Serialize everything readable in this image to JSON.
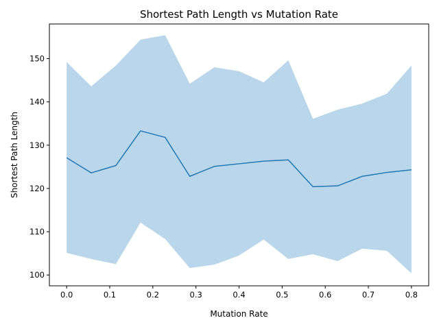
{
  "chart_data": {
    "type": "line",
    "title": "Shortest Path Length vs Mutation Rate",
    "xlabel": "Mutation Rate",
    "ylabel": "Shortest Path Length",
    "xlim": [
      -0.04,
      0.84
    ],
    "ylim": [
      97.5,
      158.0
    ],
    "xticks": [
      0.0,
      0.1,
      0.2,
      0.3,
      0.4,
      0.5,
      0.6,
      0.7,
      0.8
    ],
    "xtick_labels": [
      "0.0",
      "0.1",
      "0.2",
      "0.3",
      "0.4",
      "0.5",
      "0.6",
      "0.7",
      "0.8"
    ],
    "yticks": [
      100,
      110,
      120,
      130,
      140,
      150
    ],
    "ytick_labels": [
      "100",
      "110",
      "120",
      "130",
      "140",
      "150"
    ],
    "grid": false,
    "series": [
      {
        "line_color": "#1f77b4",
        "band_color": "#bad6ea",
        "x": [
          0.0,
          0.0571,
          0.1143,
          0.1714,
          0.2286,
          0.2857,
          0.3429,
          0.4,
          0.4571,
          0.5143,
          0.5714,
          0.6286,
          0.6857,
          0.7429,
          0.8
        ],
        "mean": [
          127.1,
          123.6,
          125.3,
          133.3,
          131.8,
          122.8,
          125.1,
          125.7,
          126.3,
          126.6,
          120.4,
          120.6,
          122.8,
          123.7,
          124.3
        ],
        "upper": [
          149.2,
          143.6,
          148.4,
          154.4,
          155.4,
          144.2,
          148.0,
          147.1,
          144.5,
          149.6,
          136.1,
          138.2,
          139.6,
          141.9,
          148.4
        ],
        "lower": [
          105.1,
          103.7,
          102.5,
          112.1,
          108.3,
          101.6,
          102.4,
          104.5,
          108.2,
          103.7,
          104.8,
          103.2,
          106.1,
          105.6,
          100.4
        ]
      }
    ]
  }
}
